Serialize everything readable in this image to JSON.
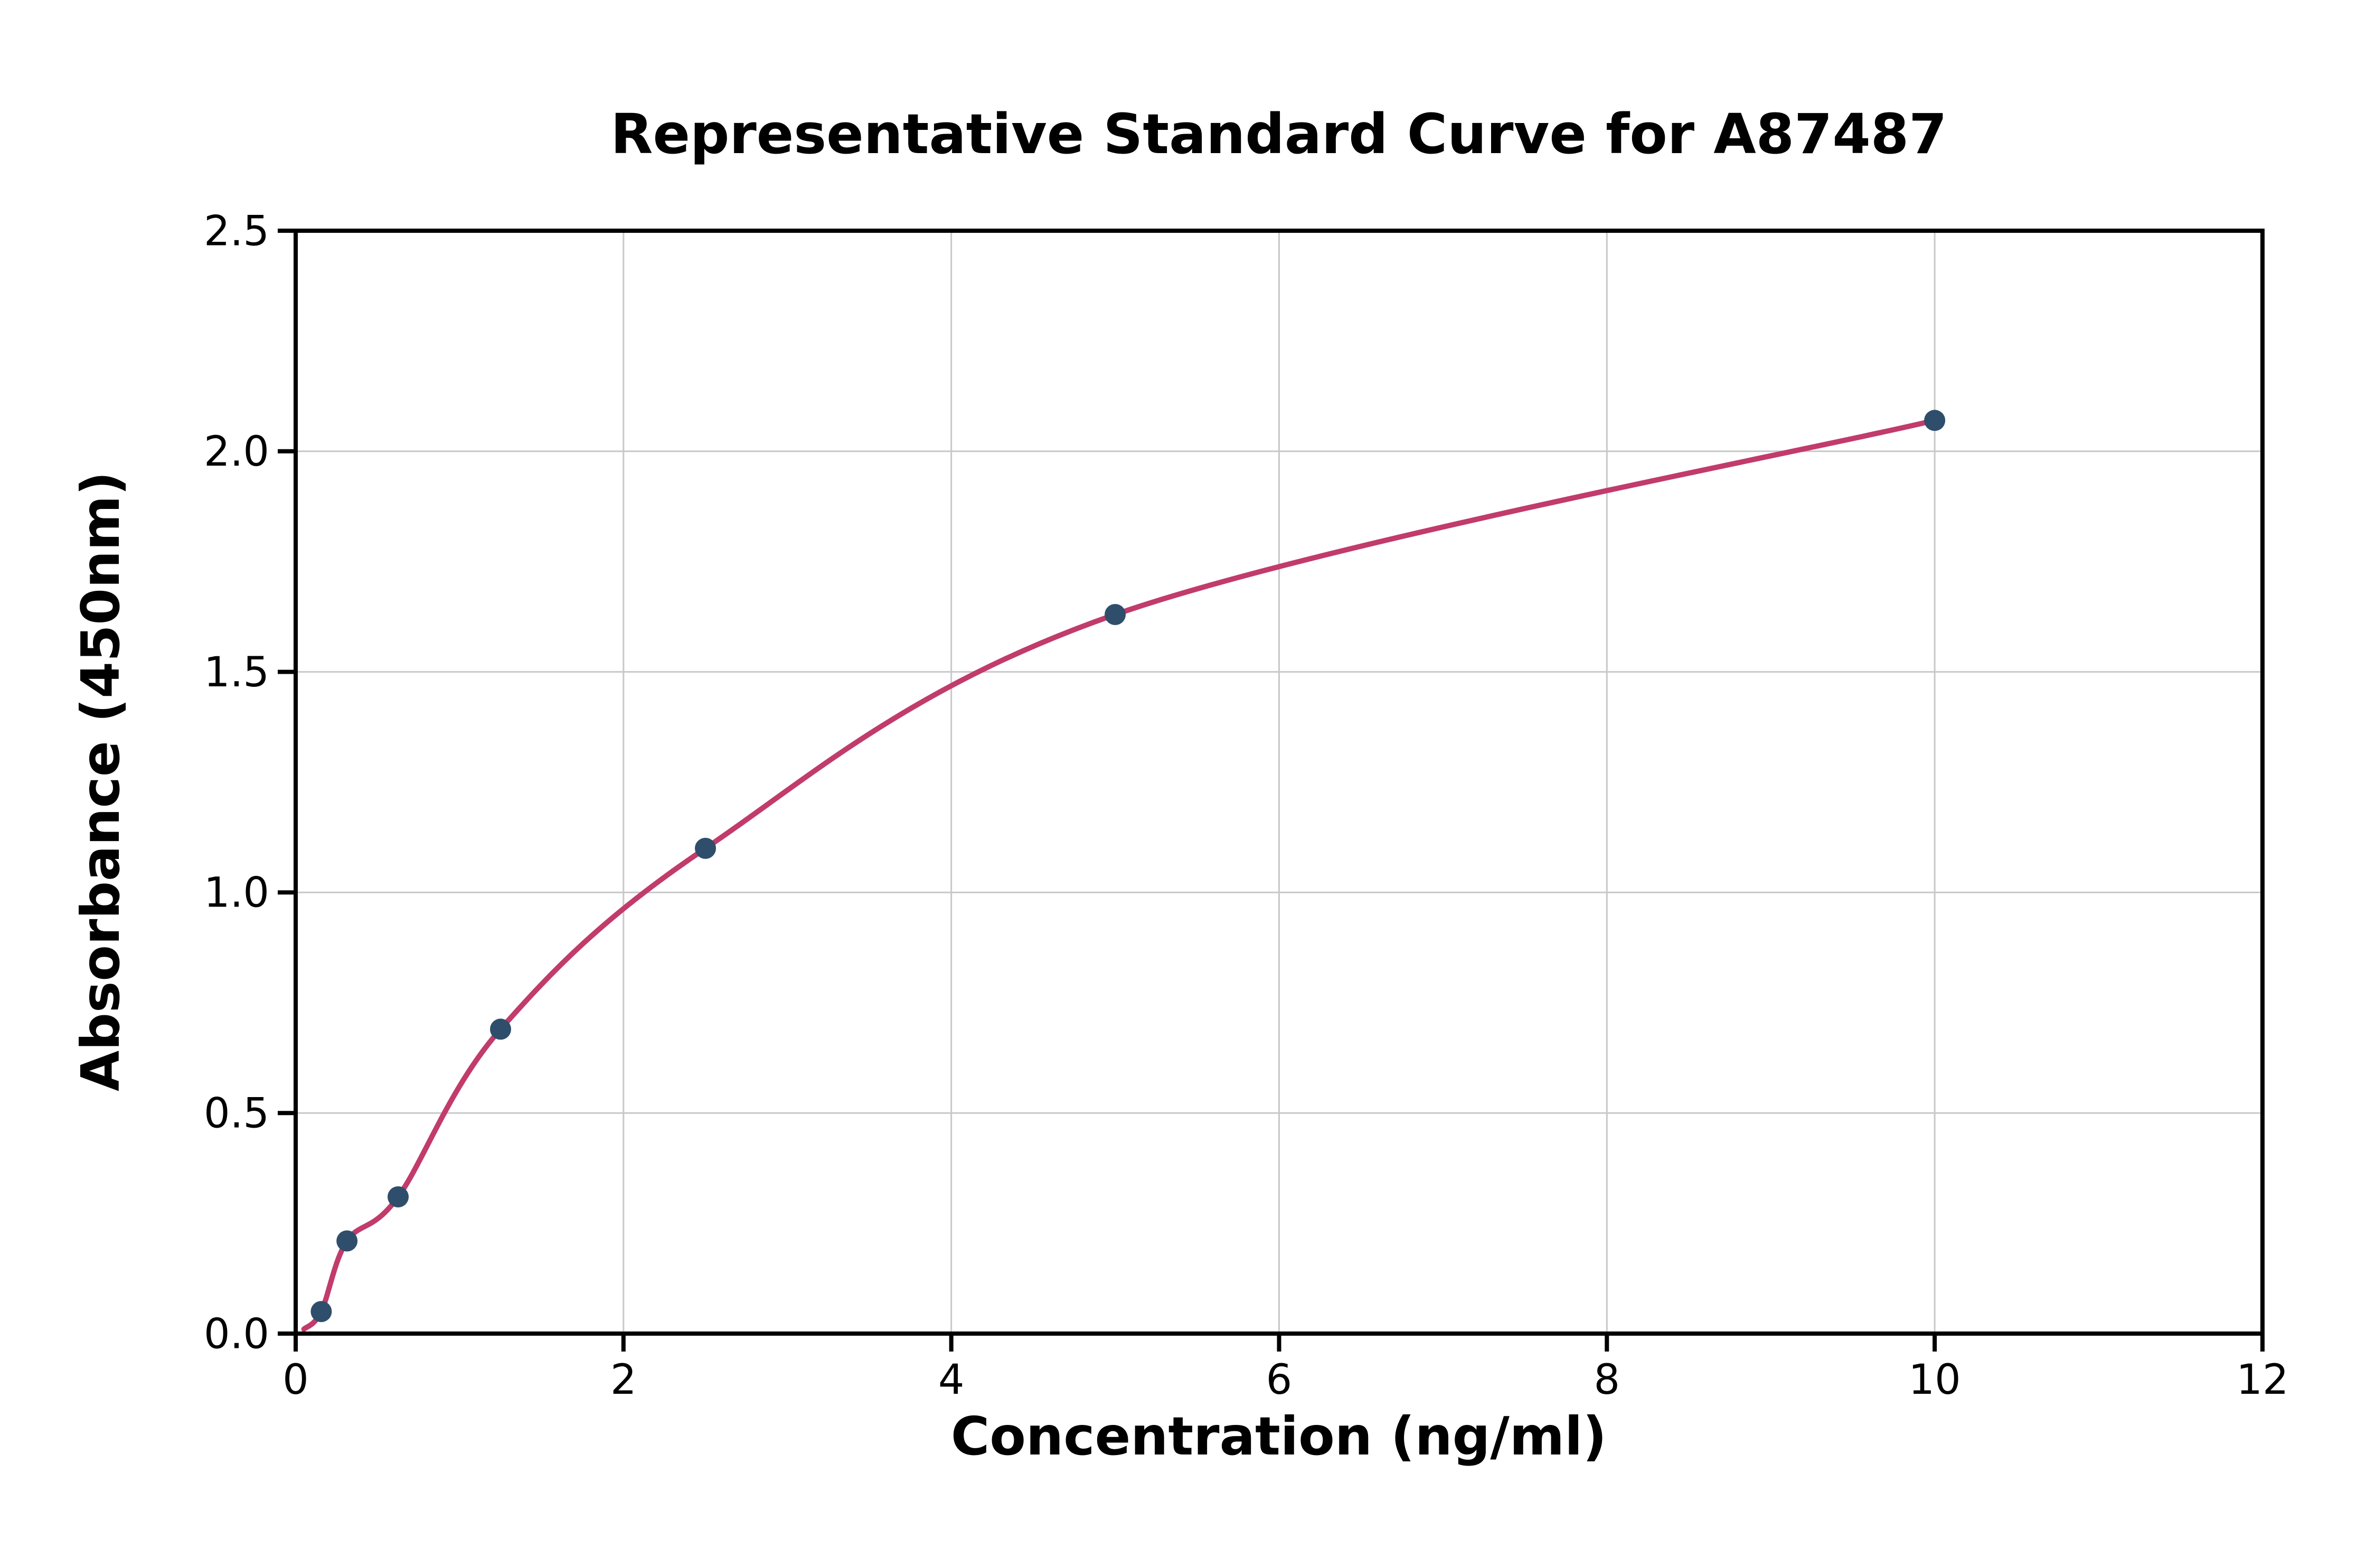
{
  "chart_data": {
    "type": "scatter",
    "title": "Representative Standard Curve for A87487",
    "xlabel": "Concentration (ng/ml)",
    "ylabel": "Absorbance (450nm)",
    "xlim": [
      0,
      12
    ],
    "ylim": [
      0,
      2.5
    ],
    "xticks": [
      0,
      2,
      4,
      6,
      8,
      10,
      12
    ],
    "xtick_labels": [
      "0",
      "2",
      "4",
      "6",
      "8",
      "10",
      "12"
    ],
    "yticks": [
      0,
      0.5,
      1.0,
      1.5,
      2.0,
      2.5
    ],
    "ytick_labels": [
      "0.0",
      "0.5",
      "1.0",
      "1.5",
      "2.0",
      "2.5"
    ],
    "grid": true,
    "legend": "none",
    "series": [
      {
        "name": "standard-points",
        "type": "scatter",
        "x": [
          0.156,
          0.313,
          0.625,
          1.25,
          2.5,
          5,
          10
        ],
        "y": [
          0.05,
          0.21,
          0.31,
          0.69,
          1.1,
          1.63,
          2.07
        ]
      },
      {
        "name": "fit-curve",
        "type": "line",
        "x": [
          0.05,
          0.156,
          0.313,
          0.625,
          1.25,
          2.5,
          5,
          10
        ],
        "y": [
          0.01,
          0.05,
          0.21,
          0.31,
          0.69,
          1.1,
          1.63,
          2.07
        ]
      }
    ],
    "colors": {
      "point": "#2f4e6b",
      "curve": "#c13b6b",
      "grid": "#c8c8c8",
      "axis": "#000000",
      "background": "#ffffff"
    }
  }
}
